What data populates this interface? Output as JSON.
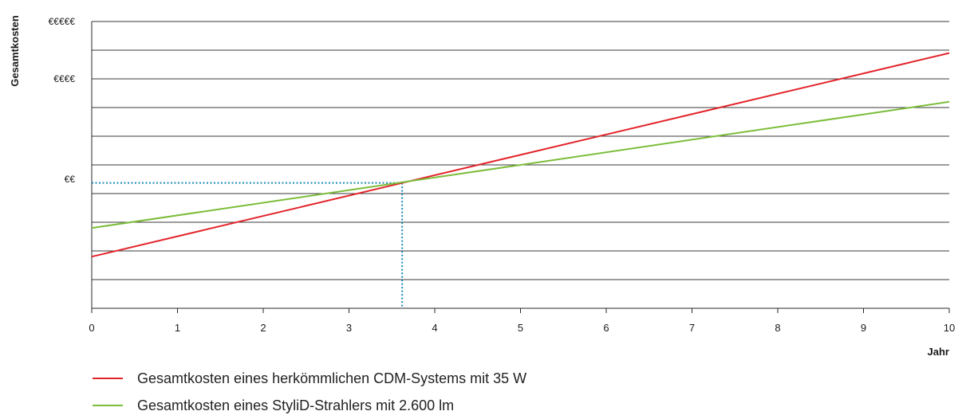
{
  "chart_data": {
    "type": "line",
    "xlabel": "Jahr",
    "ylabel": "Gesamtkosten",
    "xlim": [
      0,
      10
    ],
    "x_ticks": [
      "0",
      "1",
      "2",
      "3",
      "4",
      "5",
      "6",
      "7",
      "8",
      "9",
      "10"
    ],
    "ylim": [
      0,
      10
    ],
    "y_ticks": [
      {
        "value": 10,
        "label": "€€€€€"
      },
      {
        "value": 8,
        "label": "€€€€"
      },
      {
        "value": 4.5,
        "label": "€€"
      }
    ],
    "gridlines_y": [
      1,
      2,
      3,
      4,
      5,
      6,
      7,
      8,
      9,
      10
    ],
    "grid": true,
    "legend_position": "bottom-left",
    "series": [
      {
        "name": "Gesamtkosten eines herkömmlichen CDM-Systems mit 35 W",
        "color": "#e2242b",
        "x": [
          0,
          10
        ],
        "y": [
          1.8,
          8.9
        ]
      },
      {
        "name": "Gesamtkosten eines StyliD-Strahlers mit 2.600 lm",
        "color": "#7cbd3a",
        "x": [
          0,
          10
        ],
        "y": [
          2.8,
          7.2
        ]
      }
    ],
    "annotations": [
      {
        "type": "break-even",
        "x": 3.62,
        "y": 4.37,
        "color": "#1a8ab5",
        "style": "dotted"
      }
    ]
  }
}
